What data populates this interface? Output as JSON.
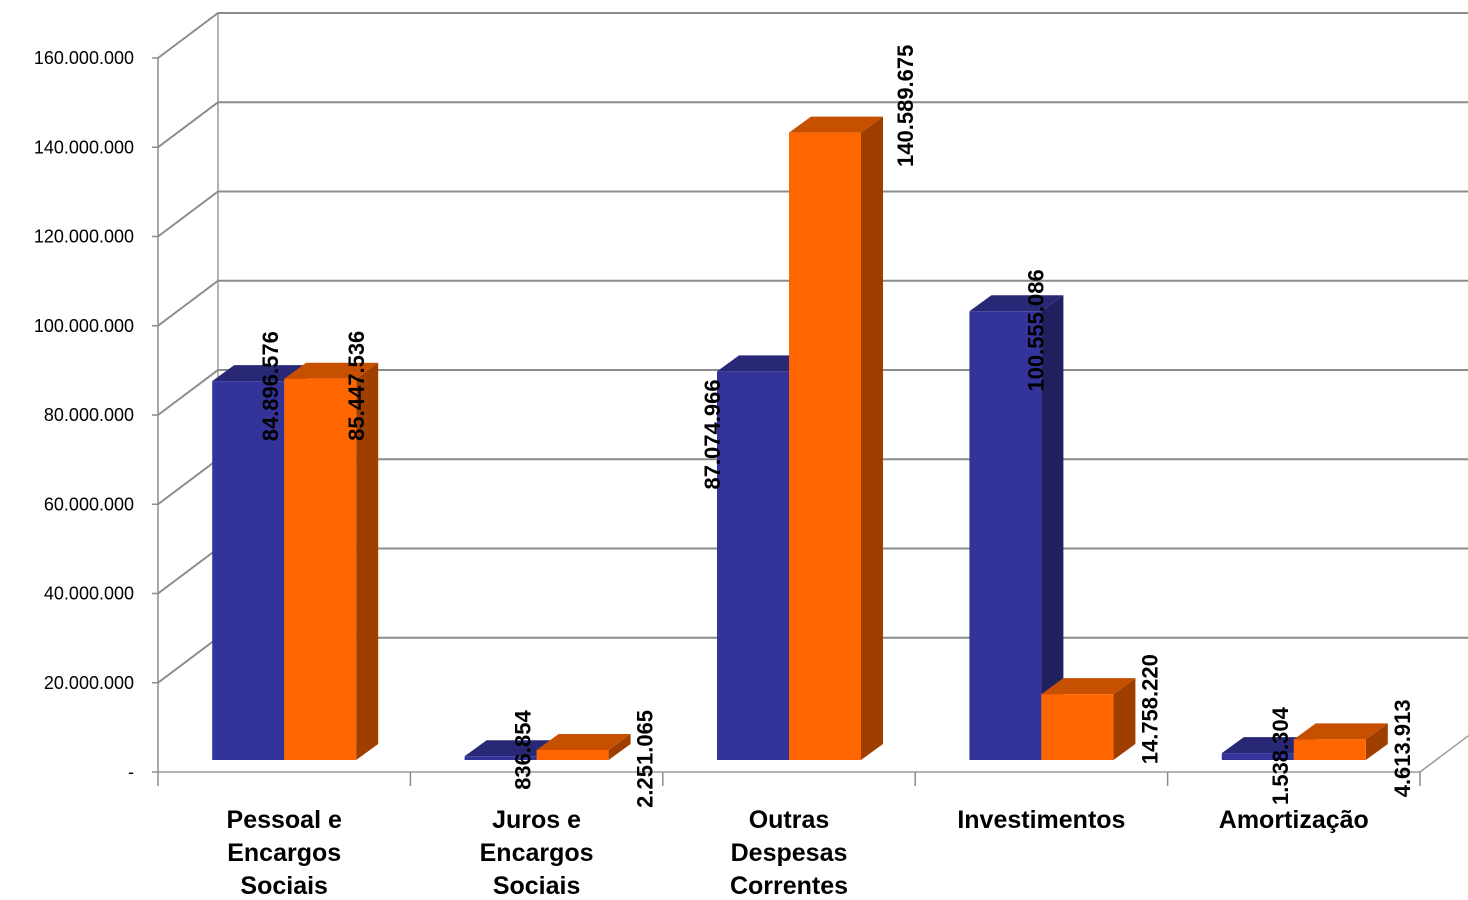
{
  "chart_data": {
    "type": "bar",
    "title": "",
    "xlabel": "",
    "ylabel": "",
    "ylim": [
      0,
      160000000
    ],
    "grid": true,
    "y_tick_labels": [
      "-",
      "20.000.000",
      "40.000.000",
      "60.000.000",
      "80.000.000",
      "100.000.000",
      "120.000.000",
      "140.000.000",
      "160.000.000"
    ],
    "categories": [
      [
        "Pessoal e",
        "Encargos",
        "Sociais"
      ],
      [
        "Juros e",
        "Encargos",
        "Sociais"
      ],
      [
        "Outras",
        "Despesas",
        "Correntes"
      ],
      [
        "Investimentos"
      ],
      [
        "Amortização"
      ]
    ],
    "series": [
      {
        "color": "#333399",
        "values": [
          84896576,
          836854,
          87074966,
          100555086,
          1538304
        ],
        "labels": [
          "84.896.576",
          "836.854",
          "87.074.966",
          "100.555.086",
          "1.538.304"
        ]
      },
      {
        "color": "#FF6600",
        "values": [
          85447536,
          2251065,
          140589675,
          14758220,
          4613913
        ],
        "labels": [
          "85.447.536",
          "2.251.065",
          "140.589.675",
          "14.758.220",
          "4.613.913"
        ]
      }
    ]
  }
}
